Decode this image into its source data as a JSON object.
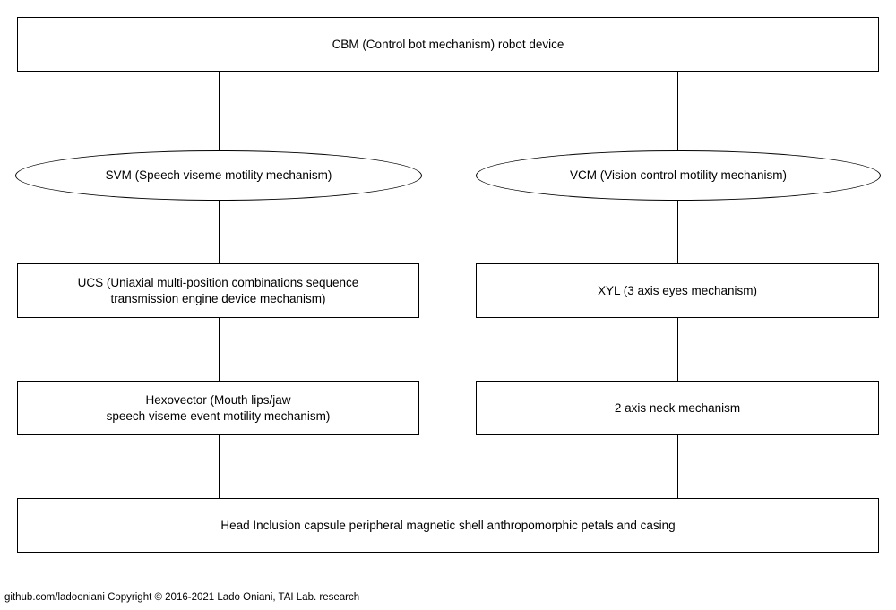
{
  "diagram": {
    "nodes": {
      "cbm": "CBM  (Control bot mechanism) robot device",
      "svm": "SVM (Speech viseme motility mechanism)",
      "vcm": "VCM (Vision control motility mechanism)",
      "ucs": "UCS (Uniaxial multi-position combinations sequence\ntransmission engine device mechanism)",
      "xyl": "XYL (3 axis eyes mechanism)",
      "hexovector": "Hexovector (Mouth lips/jaw\nspeech viseme event motility mechanism)",
      "neck": "2 axis neck mechanism",
      "head": "Head Inclusion capsule peripheral magnetic shell anthropomorphic petals and casing"
    },
    "edges": [
      [
        "cbm",
        "svm"
      ],
      [
        "cbm",
        "vcm"
      ],
      [
        "svm",
        "ucs"
      ],
      [
        "vcm",
        "xyl"
      ],
      [
        "ucs",
        "hexovector"
      ],
      [
        "xyl",
        "neck"
      ],
      [
        "hexovector",
        "head"
      ],
      [
        "neck",
        "head"
      ]
    ]
  },
  "footer": {
    "text": "github.com/ladooniani Copyright © 2016-2021 Lado Oniani, TAI Lab. research"
  }
}
